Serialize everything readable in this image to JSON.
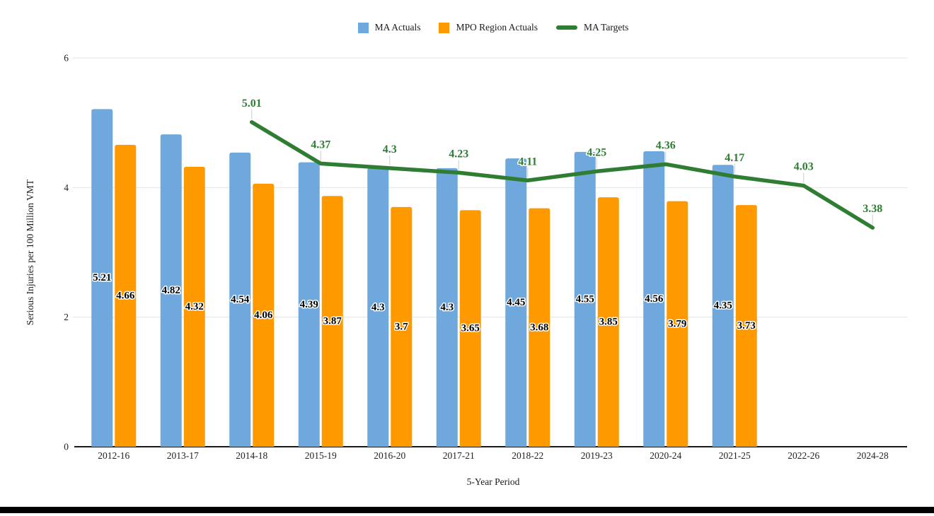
{
  "legend": {
    "items": [
      {
        "label": "MA Actuals"
      },
      {
        "label": "MPO Region Actuals"
      },
      {
        "label": "MA Targets"
      }
    ]
  },
  "axes": {
    "ylabel": "Serious Injuries per 100 Million VMT",
    "xlabel": "5-Year Period"
  },
  "chart_data": {
    "type": "bar+line",
    "title": "",
    "xlabel": "5-Year Period",
    "ylabel": "Serious Injuries per 100 Million VMT",
    "ylim": [
      0,
      6
    ],
    "yticks": [
      0,
      2,
      4,
      6
    ],
    "grid": true,
    "legend_position": "top",
    "categories": [
      "2012-16",
      "2013-17",
      "2014-18",
      "2015-19",
      "2016-20",
      "2017-21",
      "2018-22",
      "2019-23",
      "2020-24",
      "2021-25",
      "2022-26",
      "2024-28"
    ],
    "series": [
      {
        "name": "MA Actuals",
        "type": "bar",
        "color": "#6fa8dc",
        "values": [
          5.21,
          4.82,
          4.54,
          4.39,
          4.3,
          4.3,
          4.45,
          4.55,
          4.56,
          4.35,
          null,
          null
        ]
      },
      {
        "name": "MPO Region Actuals",
        "type": "bar",
        "color": "#ff9900",
        "values": [
          4.66,
          4.32,
          4.06,
          3.87,
          3.7,
          3.65,
          3.68,
          3.85,
          3.79,
          3.73,
          null,
          null
        ]
      },
      {
        "name": "MA Targets",
        "type": "line",
        "color": "#2e7d32",
        "values": [
          null,
          null,
          5.01,
          4.37,
          4.3,
          4.23,
          4.11,
          4.25,
          4.36,
          4.17,
          4.03,
          3.38
        ]
      }
    ]
  }
}
